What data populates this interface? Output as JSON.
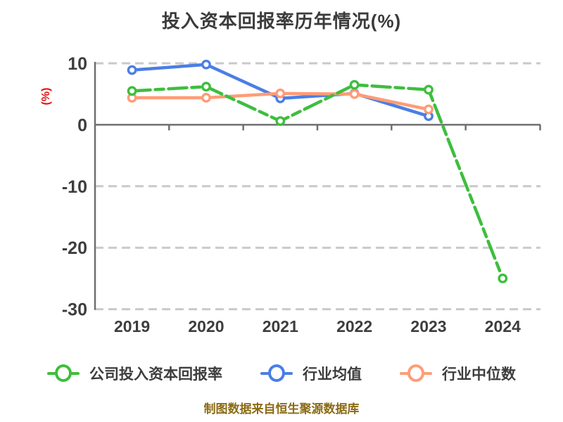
{
  "title": "投入资本回报率历年情况(%)",
  "footer": "制图数据来自恒生聚源数据库",
  "colors": {
    "company_line": "#3ebe3e",
    "industry_mean_line": "#4b7ee5",
    "industry_median_line": "#ff9c76",
    "grid": "#c9c9c9",
    "axis": "#6f6f6f",
    "tick_text": "#3d3d3d",
    "title_text": "#3b3b3b",
    "ylabel_text": "#e51010",
    "footer_text": "#8b6a14"
  },
  "chart_data": {
    "type": "line",
    "title": "投入资本回报率历年情况(%)",
    "categories": [
      "2019",
      "2020",
      "2021",
      "2022",
      "2023",
      "2024"
    ],
    "series": [
      {
        "name": "公司投入资本回报率",
        "color": "#3ebe3e",
        "style": "dashdot",
        "values": [
          5.5,
          6.2,
          0.6,
          6.5,
          5.7,
          -25.0
        ]
      },
      {
        "name": "行业均值",
        "color": "#4b7ee5",
        "style": "solid",
        "values": [
          8.9,
          9.8,
          4.3,
          5.1,
          1.4,
          null
        ]
      },
      {
        "name": "行业中位数",
        "color": "#ff9c76",
        "style": "solid",
        "values": [
          4.4,
          4.4,
          5.1,
          5.0,
          2.5,
          null
        ]
      }
    ],
    "xlabel": "",
    "ylabel": "(%)",
    "ylim": [
      -30,
      10
    ],
    "yticks": [
      10,
      0,
      -10,
      -20,
      -30
    ],
    "grid": "horizontal-dashed",
    "legend_position": "bottom"
  }
}
